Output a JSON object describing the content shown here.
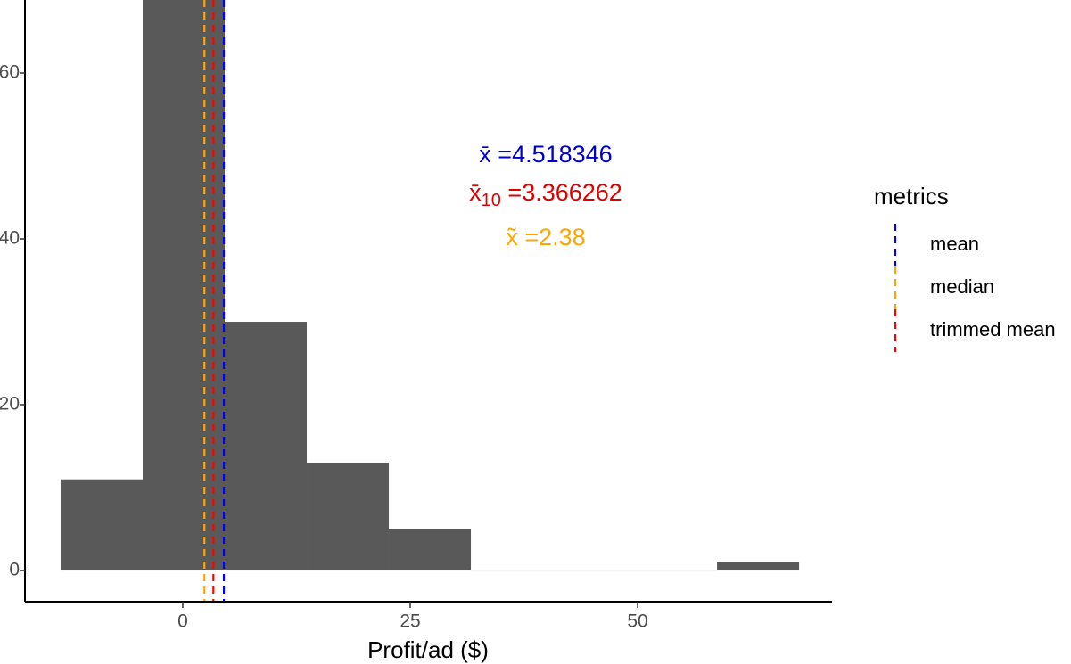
{
  "chart_data": {
    "type": "histogram",
    "x_label": "Profit/ad ($)",
    "bins": [
      -13.43,
      -4.41,
      4.61,
      13.63,
      22.65,
      31.67,
      40.69,
      49.71,
      58.73,
      67.75
    ],
    "values": [
      11,
      75,
      30,
      13,
      5,
      0,
      0,
      0,
      1
    ],
    "color": "#595959",
    "xlim": [
      -17.35,
      71.37
    ],
    "xticks": [
      0,
      25,
      50
    ],
    "ylim": [
      -3.76,
      68.82
    ],
    "yticks": [
      0,
      20,
      40,
      60
    ],
    "vlines": [
      {
        "name": "mean",
        "value": 4.518346,
        "color": "#0000ff"
      },
      {
        "name": "median",
        "value": 2.38,
        "color": "#ffa500"
      },
      {
        "name": "trimmed mean",
        "value": 3.366262,
        "color": "#ff0000"
      }
    ],
    "legend_title": "metrics",
    "annotations": [
      {
        "symbol": "x̄",
        "text": " =4.518346",
        "color": "#0000cc"
      },
      {
        "symbol": "x̄",
        "subscript": "10",
        "text": " =3.366262",
        "color": "#e00000"
      },
      {
        "symbol": "x̃",
        "text": " =2.38",
        "color": "#ffa500"
      }
    ]
  }
}
